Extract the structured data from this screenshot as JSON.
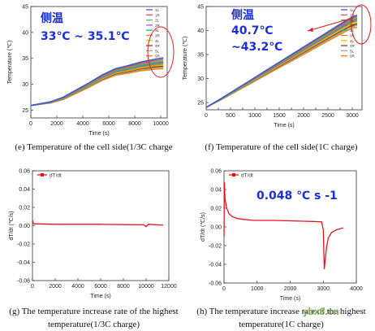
{
  "chart_data": [
    {
      "id": "e",
      "type": "line",
      "xlabel": "Time (s)",
      "ylabel": "Temperature (℃)",
      "xlim": [
        0,
        10500
      ],
      "ylim": [
        23.5,
        45
      ],
      "xticks": [
        0,
        2000,
        4000,
        6000,
        8000,
        10000
      ],
      "yticks": [
        25,
        30,
        35,
        40,
        45
      ],
      "legend": [
        "1L",
        "1R",
        "2L",
        "2R",
        "3L",
        "3R",
        "4L",
        "4R",
        "5L",
        "5R"
      ],
      "legend_position": "top-right",
      "series_colors": [
        "#3a5fcd",
        "#d9534f",
        "#5cb85c",
        "#9b59b6",
        "#1abc9c",
        "#e67e22",
        "#f1c40f",
        "#8b4513",
        "#95a5a6",
        "#ff7f0e"
      ],
      "series_end_offsets": [
        0.0,
        -0.3,
        -0.6,
        -0.8,
        -1.0,
        -1.2,
        -1.4,
        -1.6,
        -1.8,
        -2.1
      ],
      "x": [
        0,
        1500,
        2500,
        3500,
        4500,
        5500,
        6500,
        7500,
        8500,
        9500,
        10200
      ],
      "y": [
        25.9,
        26.6,
        27.5,
        28.9,
        30.3,
        31.8,
        33.0,
        33.6,
        34.3,
        34.8,
        35.1
      ],
      "title_annotation": {
        "line1": "侧温",
        "line2": "33℃ ~ 35.1℃"
      },
      "caption": "(e) Temperature of the cell side(1/3C charge"
    },
    {
      "id": "f",
      "type": "line",
      "xlabel": "Time (s)",
      "ylabel": "Temperature (℃)",
      "xlim": [
        0,
        3200
      ],
      "ylim": [
        23.5,
        45
      ],
      "xticks": [
        0,
        250,
        500,
        750,
        1000,
        1250,
        1500,
        1750,
        2000,
        2250,
        2500,
        2750,
        3000
      ],
      "xtick_labels": [
        "0",
        "",
        "500",
        "",
        "1000",
        "",
        "1500",
        "",
        "2000",
        "",
        "2500",
        "",
        "3000"
      ],
      "yticks": [
        25,
        30,
        35,
        40,
        45
      ],
      "legend": [
        "1L",
        "1R",
        "2L",
        "2R",
        "3L",
        "3R",
        "4L",
        "4R",
        "5L",
        "5R"
      ],
      "legend_position": "top-right",
      "series_colors": [
        "#3a5fcd",
        "#d9534f",
        "#5cb85c",
        "#9b59b6",
        "#1abc9c",
        "#e67e22",
        "#f1c40f",
        "#8b4513",
        "#95a5a6",
        "#ff7f0e"
      ],
      "series_end_offsets": [
        0.0,
        -0.3,
        -0.6,
        -0.8,
        -1.0,
        -1.2,
        -1.5,
        -1.8,
        -2.1,
        -2.5
      ],
      "x": [
        0,
        300,
        600,
        900,
        1200,
        1500,
        1800,
        2100,
        2400,
        2700,
        3000,
        3100
      ],
      "y": [
        24.0,
        25.8,
        27.7,
        29.6,
        31.5,
        33.4,
        35.3,
        37.2,
        39.1,
        41.0,
        42.8,
        43.2
      ],
      "title_annotation": {
        "line1": "侧温",
        "line2": "40.7℃",
        "line3": "~43.2℃"
      },
      "caption": "(f) Temperature of the cell side(1C charge)"
    },
    {
      "id": "g",
      "type": "line",
      "xlabel": "Time (s)",
      "ylabel": "dT/dt (℃/s)",
      "xlim": [
        0,
        12000
      ],
      "ylim": [
        -0.06,
        0.06
      ],
      "xticks": [
        0,
        2000,
        4000,
        6000,
        8000,
        10000,
        12000
      ],
      "yticks": [
        -0.06,
        -0.04,
        -0.02,
        0.0,
        0.02,
        0.04,
        0.06
      ],
      "ytick_labels": [
        "-0.06",
        "-0.04",
        "-0.02",
        "0.00",
        "0.02",
        "0.04",
        "0.06"
      ],
      "legend": [
        "dT/dt"
      ],
      "legend_position": "top-left",
      "series_colors": [
        "#e8141c"
      ],
      "x": [
        0,
        100,
        500,
        2000,
        4000,
        6000,
        8000,
        9800,
        10000,
        10200,
        11500
      ],
      "y": [
        0.006,
        0.002,
        0.002,
        0.0015,
        0.0015,
        0.0015,
        0.0012,
        0.001,
        -0.001,
        0.0015,
        0.0005
      ],
      "caption_line1": "(g) The temperature increase rate of the highest",
      "caption_line2": "temperature(1/3C charge)"
    },
    {
      "id": "h",
      "type": "line",
      "xlabel": "Time (s)",
      "ylabel": "dT/dt (℃/s)",
      "xlim": [
        0,
        4000
      ],
      "ylim": [
        -0.06,
        0.06
      ],
      "xticks": [
        0,
        1000,
        2000,
        3000,
        4000
      ],
      "yticks": [
        -0.06,
        -0.04,
        -0.02,
        0.0,
        0.02,
        0.04,
        0.06
      ],
      "ytick_labels": [
        "-0.06",
        "-0.04",
        "-0.02",
        "0.00",
        "0.02",
        "0.04",
        "0.06"
      ],
      "legend": [
        "dT/dt"
      ],
      "legend_position": "top-left",
      "series_colors": [
        "#e8141c"
      ],
      "x": [
        0,
        10,
        30,
        80,
        150,
        250,
        400,
        600,
        900,
        1500,
        2000,
        2500,
        2950,
        3000,
        3030,
        3060,
        3100,
        3150,
        3250,
        3400,
        3600
      ],
      "y": [
        -0.01,
        0.048,
        0.03,
        0.02,
        0.014,
        0.011,
        0.009,
        0.008,
        0.007,
        0.007,
        0.0065,
        0.006,
        0.0055,
        -0.003,
        -0.045,
        -0.035,
        -0.022,
        -0.012,
        -0.006,
        -0.003,
        -0.001
      ],
      "value_annotation": "0.048 ℃ s -1",
      "caption_line1": "(h) The temperature increase rate of the highest",
      "caption_line2": "temperature(1C charge)"
    }
  ],
  "watermark": "ybx8.cn"
}
